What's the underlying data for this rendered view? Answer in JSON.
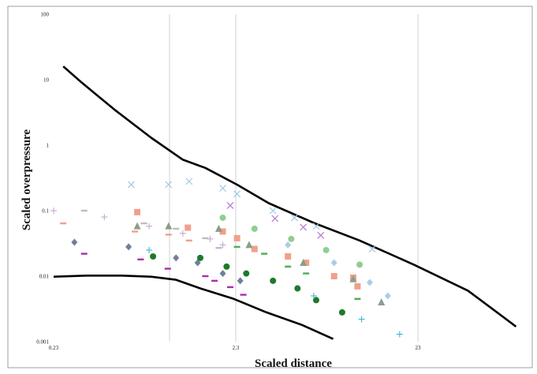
{
  "chart_data": {
    "type": "scatter",
    "xlabel": "Scaled distance",
    "ylabel": "Scaled overpressure",
    "y_scale": "log",
    "ylim": [
      0.001,
      100
    ],
    "y_ticks": [
      "100",
      "10",
      "1",
      "0.1",
      "0.01",
      "0.001"
    ],
    "x_tick_labels": [
      "0.23",
      "2.3",
      "23"
    ],
    "grid": {
      "x": true,
      "y": false
    },
    "legend": "none",
    "colors": {
      "curve": "#000000",
      "grid": "#d0d0d0",
      "frame": "#888888"
    },
    "series": [
      {
        "marker": "x",
        "color": "#9ec9e8",
        "points": [
          [
            0.62,
            0.25
          ],
          [
            1.0,
            0.25
          ],
          [
            1.3,
            0.28
          ],
          [
            2.0,
            0.22
          ],
          [
            2.4,
            0.18
          ],
          [
            3.8,
            0.1
          ],
          [
            5.0,
            0.078
          ],
          [
            6.6,
            0.058
          ],
          [
            13.5,
            0.026
          ]
        ]
      },
      {
        "marker": "x-purple",
        "color": "#b57acf",
        "points": [
          [
            2.2,
            0.12
          ],
          [
            3.9,
            0.076
          ],
          [
            5.6,
            0.056
          ],
          [
            7.0,
            0.042
          ]
        ]
      },
      {
        "marker": "plus",
        "color": "#c7a6cf",
        "points": [
          [
            0.23,
            0.1
          ],
          [
            0.44,
            0.08
          ],
          [
            0.78,
            0.058
          ],
          [
            1.2,
            0.045
          ],
          [
            1.7,
            0.037
          ],
          [
            2.0,
            0.03
          ]
        ]
      },
      {
        "marker": "dash-gray",
        "color": "#bdbdbd",
        "points": [
          [
            0.34,
            0.1
          ],
          [
            0.73,
            0.064
          ],
          [
            1.1,
            0.053
          ],
          [
            1.6,
            0.038
          ],
          [
            1.9,
            0.027
          ]
        ]
      },
      {
        "marker": "dash-pink",
        "color": "#f0a08a",
        "points": [
          [
            0.26,
            0.064
          ],
          [
            0.65,
            0.048
          ],
          [
            1.0,
            0.043
          ],
          [
            1.3,
            0.035
          ]
        ]
      },
      {
        "marker": "square",
        "color": "#f0a08a",
        "points": [
          [
            0.67,
            0.095
          ],
          [
            1.28,
            0.055
          ],
          [
            2.0,
            0.048
          ],
          [
            2.4,
            0.038
          ],
          [
            3.0,
            0.026
          ],
          [
            4.6,
            0.02
          ],
          [
            5.8,
            0.016
          ],
          [
            8.3,
            0.01
          ],
          [
            10.6,
            0.0095
          ],
          [
            11.2,
            0.007
          ]
        ]
      },
      {
        "marker": "triangle",
        "color": "#8a9d8a",
        "points": [
          [
            0.67,
            0.058
          ],
          [
            1.0,
            0.058
          ],
          [
            1.9,
            0.053
          ],
          [
            2.8,
            0.03
          ],
          [
            5.6,
            0.016
          ],
          [
            10.6,
            0.009
          ],
          [
            15.2,
            0.004
          ]
        ]
      },
      {
        "marker": "circle-light",
        "color": "#8fcf8f",
        "points": [
          [
            2.0,
            0.078
          ],
          [
            3.0,
            0.053
          ],
          [
            4.8,
            0.037
          ],
          [
            7.5,
            0.025
          ],
          [
            11.5,
            0.015
          ]
        ]
      },
      {
        "marker": "diamond-dark",
        "color": "#6f7f96",
        "points": [
          [
            0.3,
            0.033
          ],
          [
            0.6,
            0.028
          ],
          [
            1.1,
            0.019
          ],
          [
            1.45,
            0.016
          ],
          [
            2.0,
            0.011
          ],
          [
            2.5,
            0.0085
          ]
        ]
      },
      {
        "marker": "diamond-light",
        "color": "#a9cde9",
        "points": [
          [
            4.6,
            0.03
          ],
          [
            8.3,
            0.016
          ],
          [
            13.1,
            0.008
          ],
          [
            16.5,
            0.005
          ]
        ]
      },
      {
        "marker": "circle-dark",
        "color": "#1e7a2a",
        "points": [
          [
            0.82,
            0.02
          ],
          [
            1.5,
            0.019
          ],
          [
            2.1,
            0.014
          ],
          [
            2.7,
            0.011
          ],
          [
            3.8,
            0.0085
          ],
          [
            5.2,
            0.0065
          ],
          [
            6.6,
            0.0043
          ],
          [
            9.2,
            0.0028
          ]
        ]
      },
      {
        "marker": "dash-green",
        "color": "#4caf50",
        "points": [
          [
            2.4,
            0.028
          ],
          [
            3.4,
            0.022
          ],
          [
            4.6,
            0.014
          ],
          [
            5.8,
            0.011
          ],
          [
            11.2,
            0.0045
          ]
        ]
      },
      {
        "marker": "dash-magenta",
        "color": "#b02ab0",
        "points": [
          [
            0.34,
            0.022
          ],
          [
            0.7,
            0.018
          ],
          [
            0.99,
            0.013
          ],
          [
            1.6,
            0.01
          ],
          [
            1.8,
            0.0085
          ],
          [
            2.2,
            0.0068
          ],
          [
            2.6,
            0.0052
          ]
        ]
      },
      {
        "marker": "plus-cyan",
        "color": "#3eb4d8",
        "points": [
          [
            0.78,
            0.025
          ],
          [
            6.4,
            0.005
          ],
          [
            11.8,
            0.0022
          ],
          [
            19.2,
            0.0013
          ]
        ]
      }
    ],
    "curves": [
      {
        "points": [
          [
            0.26,
            16
          ],
          [
            0.33,
            9
          ],
          [
            0.5,
            3.5
          ],
          [
            0.8,
            1.3
          ],
          [
            1.2,
            0.6
          ],
          [
            1.6,
            0.45
          ],
          [
            2.4,
            0.25
          ],
          [
            3.6,
            0.13
          ],
          [
            6.4,
            0.065
          ],
          [
            11.5,
            0.035
          ],
          [
            23,
            0.015
          ],
          [
            46,
            0.006
          ],
          [
            85,
            0.0017
          ]
        ]
      },
      {
        "points": [
          [
            0.23,
            0.0098
          ],
          [
            0.35,
            0.0102
          ],
          [
            0.55,
            0.0102
          ],
          [
            0.8,
            0.0098
          ],
          [
            1.1,
            0.0088
          ],
          [
            1.5,
            0.0065
          ],
          [
            2.3,
            0.0045
          ],
          [
            3.5,
            0.0028
          ],
          [
            5.5,
            0.0018
          ],
          [
            8.2,
            0.0011
          ]
        ]
      }
    ]
  }
}
